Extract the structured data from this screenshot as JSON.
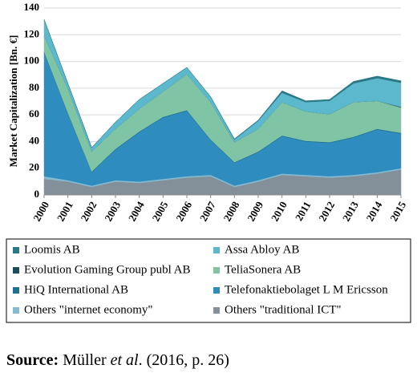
{
  "chart_data": {
    "type": "stacked-area",
    "y_label": "Market Capitalization [Bn. €]",
    "x": [
      2000,
      2001,
      2002,
      2003,
      2004,
      2005,
      2006,
      2007,
      2008,
      2009,
      2010,
      2011,
      2012,
      2013,
      2014,
      2015
    ],
    "xlim": [
      2000,
      2015
    ],
    "ylim": [
      0,
      140
    ],
    "yticks": [
      0,
      20,
      40,
      60,
      80,
      100,
      120,
      140
    ],
    "grid": true,
    "series": [
      {
        "name": "Loomis AB",
        "color": "#2b7786",
        "values": [
          0,
          0,
          0,
          0,
          0,
          0,
          0,
          0,
          0.5,
          0.5,
          1.5,
          1,
          1,
          1.5,
          1.5,
          1.5
        ]
      },
      {
        "name": "Assa Abloy AB",
        "color": "#5cb8cd",
        "values": [
          12,
          4,
          3,
          5,
          7,
          6,
          5,
          4,
          2,
          6,
          7,
          7,
          10,
          14,
          17,
          18
        ]
      },
      {
        "name": "Evolution Gaming Group publ AB",
        "color": "#1c4d5c",
        "values": [
          0,
          0,
          0,
          0,
          0,
          0,
          0,
          0,
          0,
          0,
          0,
          0,
          0,
          0,
          0,
          0.5
        ]
      },
      {
        "name": "TeliaSonera AB",
        "color": "#7fc5a5",
        "values": [
          12,
          18,
          15,
          15,
          17,
          19,
          27,
          28,
          15,
          17,
          25,
          22,
          21,
          26,
          21,
          19
        ]
      },
      {
        "name": "HiQ International AB",
        "color": "#1f6f92",
        "values": [
          0.5,
          0.5,
          0.5,
          0.5,
          0.5,
          0.5,
          0.5,
          0.5,
          0.5,
          0.5,
          0.5,
          0.5,
          0.5,
          0.5,
          0.5,
          0.5
        ]
      },
      {
        "name": "Telefonaktiebolaget L M Ericsson",
        "color": "#2f8cbe",
        "values": [
          93,
          50,
          10,
          23,
          37,
          46,
          49,
          26,
          17,
          21,
          28,
          25,
          25,
          28,
          32,
          26
        ]
      },
      {
        "name": "Others \"internet economy\"",
        "color": "#84bbd2",
        "values": [
          2,
          1,
          1,
          1,
          1,
          1,
          1,
          1,
          1,
          1,
          1,
          1,
          1,
          1,
          1,
          1
        ]
      },
      {
        "name": "Others \"traditional ICT\"",
        "color": "#83909a",
        "values": [
          12,
          10,
          6,
          10,
          9,
          11,
          13,
          14,
          6,
          10,
          15,
          14,
          13,
          14,
          16,
          19
        ]
      }
    ]
  },
  "source": {
    "label": "Source:",
    "author": " Müller ",
    "etal": "et al",
    "rest": ". (2016, p. 26)"
  }
}
